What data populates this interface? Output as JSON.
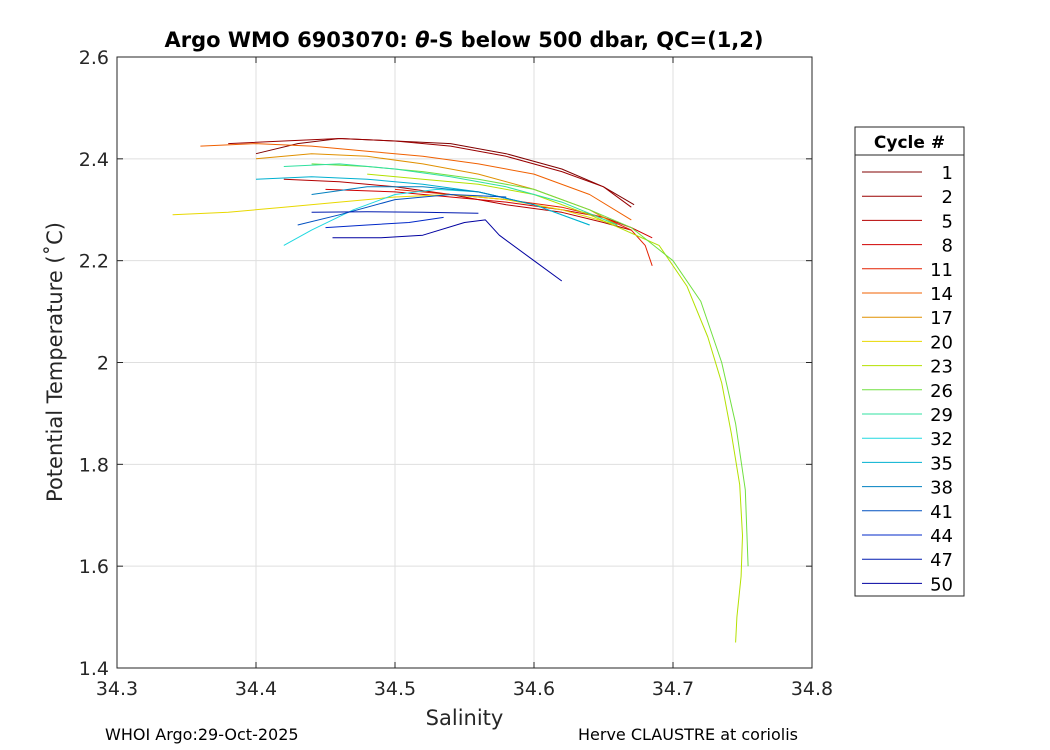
{
  "chart_data": {
    "type": "line",
    "title_prefix": "Argo WMO 6903070: ",
    "title_symbol": "θ",
    "title_suffix": "-S below 500 dbar,  QC=(1,2)",
    "xlabel": "Salinity",
    "ylabel": "Potential Temperature (˚C)",
    "xlim": [
      34.3,
      34.8
    ],
    "ylim": [
      1.4,
      2.6
    ],
    "xticks": [
      34.3,
      34.4,
      34.5,
      34.6,
      34.7,
      34.8
    ],
    "xtick_labels": [
      "34.3",
      "34.4",
      "34.5",
      "34.6",
      "34.7",
      "34.8"
    ],
    "yticks": [
      1.4,
      1.6,
      1.8,
      2.0,
      2.2,
      2.4,
      2.6
    ],
    "ytick_labels": [
      "1.4",
      "1.6",
      "1.8",
      "2",
      "2.2",
      "2.4",
      "2.6"
    ],
    "grid": true,
    "legend_title": "Cycle #",
    "legend_position": "right",
    "series": [
      {
        "name": "1",
        "color": "#800000",
        "x": [
          34.4,
          34.43,
          34.46,
          34.5,
          34.54,
          34.58,
          34.62,
          34.65,
          34.672
        ],
        "y": [
          2.41,
          2.43,
          2.44,
          2.435,
          2.43,
          2.41,
          2.38,
          2.345,
          2.31
        ]
      },
      {
        "name": "2",
        "color": "#9a0000",
        "x": [
          34.38,
          34.42,
          34.46,
          34.5,
          34.54,
          34.58,
          34.62,
          34.65,
          34.67
        ],
        "y": [
          2.43,
          2.435,
          2.44,
          2.435,
          2.425,
          2.405,
          2.375,
          2.345,
          2.305
        ]
      },
      {
        "name": "5",
        "color": "#b40000",
        "x": [
          34.42,
          34.46,
          34.5,
          34.54,
          34.58,
          34.62,
          34.65,
          34.67
        ],
        "y": [
          2.36,
          2.355,
          2.345,
          2.33,
          2.31,
          2.295,
          2.275,
          2.26
        ]
      },
      {
        "name": "8",
        "color": "#d00000",
        "x": [
          34.45,
          34.5,
          34.54,
          34.58,
          34.62,
          34.65,
          34.67,
          34.685
        ],
        "y": [
          2.34,
          2.335,
          2.325,
          2.315,
          2.3,
          2.285,
          2.265,
          2.245
        ]
      },
      {
        "name": "11",
        "color": "#e42000",
        "x": [
          34.5,
          34.54,
          34.58,
          34.62,
          34.65,
          34.67,
          34.68,
          34.685
        ],
        "y": [
          2.34,
          2.33,
          2.32,
          2.305,
          2.285,
          2.26,
          2.23,
          2.19
        ]
      },
      {
        "name": "14",
        "color": "#f06000",
        "x": [
          34.36,
          34.4,
          34.44,
          34.48,
          34.52,
          34.56,
          34.6,
          34.64,
          34.67
        ],
        "y": [
          2.425,
          2.43,
          2.425,
          2.415,
          2.405,
          2.39,
          2.37,
          2.33,
          2.28
        ]
      },
      {
        "name": "17",
        "color": "#e09000",
        "x": [
          34.4,
          34.44,
          34.48,
          34.52,
          34.56,
          34.6,
          34.64,
          34.66
        ],
        "y": [
          2.4,
          2.41,
          2.405,
          2.39,
          2.37,
          2.34,
          2.3,
          2.27
        ]
      },
      {
        "name": "20",
        "color": "#e8d800",
        "x": [
          34.34,
          34.38,
          34.42,
          34.46,
          34.5,
          34.54,
          34.58,
          34.62,
          34.66
        ],
        "y": [
          2.29,
          2.295,
          2.305,
          2.315,
          2.325,
          2.33,
          2.32,
          2.3,
          2.27
        ]
      },
      {
        "name": "23",
        "color": "#b4e000",
        "x": [
          34.48,
          34.52,
          34.56,
          34.6,
          34.64,
          34.665,
          34.69,
          34.71,
          34.725,
          34.735,
          34.742,
          34.748,
          34.75,
          34.749,
          34.746,
          34.745
        ],
        "y": [
          2.37,
          2.36,
          2.35,
          2.33,
          2.29,
          2.26,
          2.23,
          2.15,
          2.05,
          1.96,
          1.86,
          1.76,
          1.66,
          1.58,
          1.5,
          1.45
        ]
      },
      {
        "name": "26",
        "color": "#70e040",
        "x": [
          34.44,
          34.48,
          34.52,
          34.56,
          34.6,
          34.64,
          34.67,
          34.7,
          34.72,
          34.735,
          34.745,
          34.752,
          34.754
        ],
        "y": [
          2.39,
          2.385,
          2.375,
          2.36,
          2.34,
          2.3,
          2.265,
          2.2,
          2.12,
          2.0,
          1.88,
          1.75,
          1.6
        ]
      },
      {
        "name": "29",
        "color": "#30e0a0",
        "x": [
          34.42,
          34.46,
          34.5,
          34.54,
          34.58,
          34.62,
          34.66
        ],
        "y": [
          2.385,
          2.39,
          2.38,
          2.365,
          2.345,
          2.315,
          2.27
        ]
      },
      {
        "name": "32",
        "color": "#20d8e0",
        "x": [
          34.42,
          34.44,
          34.47,
          34.5,
          34.53,
          34.56,
          34.6,
          34.64
        ],
        "y": [
          2.23,
          2.26,
          2.3,
          2.33,
          2.34,
          2.335,
          2.31,
          2.27
        ]
      },
      {
        "name": "35",
        "color": "#00b0d0",
        "x": [
          34.4,
          34.44,
          34.48,
          34.52,
          34.56,
          34.6,
          34.64
        ],
        "y": [
          2.36,
          2.365,
          2.36,
          2.35,
          2.335,
          2.31,
          2.27
        ]
      },
      {
        "name": "38",
        "color": "#0080c0",
        "x": [
          34.44,
          34.48,
          34.52,
          34.56,
          34.6
        ],
        "y": [
          2.33,
          2.345,
          2.345,
          2.335,
          2.31
        ]
      },
      {
        "name": "41",
        "color": "#0050c0",
        "x": [
          34.43,
          34.46,
          34.5,
          34.54,
          34.58
        ],
        "y": [
          2.27,
          2.29,
          2.32,
          2.33,
          2.325
        ]
      },
      {
        "name": "44",
        "color": "#0028c8",
        "x": [
          34.45,
          34.48,
          34.51,
          34.535
        ],
        "y": [
          2.265,
          2.27,
          2.275,
          2.285
        ]
      },
      {
        "name": "47",
        "color": "#001ab0",
        "x": [
          34.44,
          34.48,
          34.52,
          34.56
        ],
        "y": [
          2.295,
          2.296,
          2.295,
          2.293
        ]
      },
      {
        "name": "50",
        "color": "#0000a0",
        "x": [
          34.455,
          34.49,
          34.52,
          34.55,
          34.565,
          34.575,
          34.6,
          34.62
        ],
        "y": [
          2.245,
          2.245,
          2.25,
          2.275,
          2.28,
          2.25,
          2.2,
          2.16
        ]
      }
    ]
  },
  "footer": {
    "left": "WHOI Argo:29-Oct-2025",
    "right": "Herve CLAUSTRE at coriolis"
  }
}
